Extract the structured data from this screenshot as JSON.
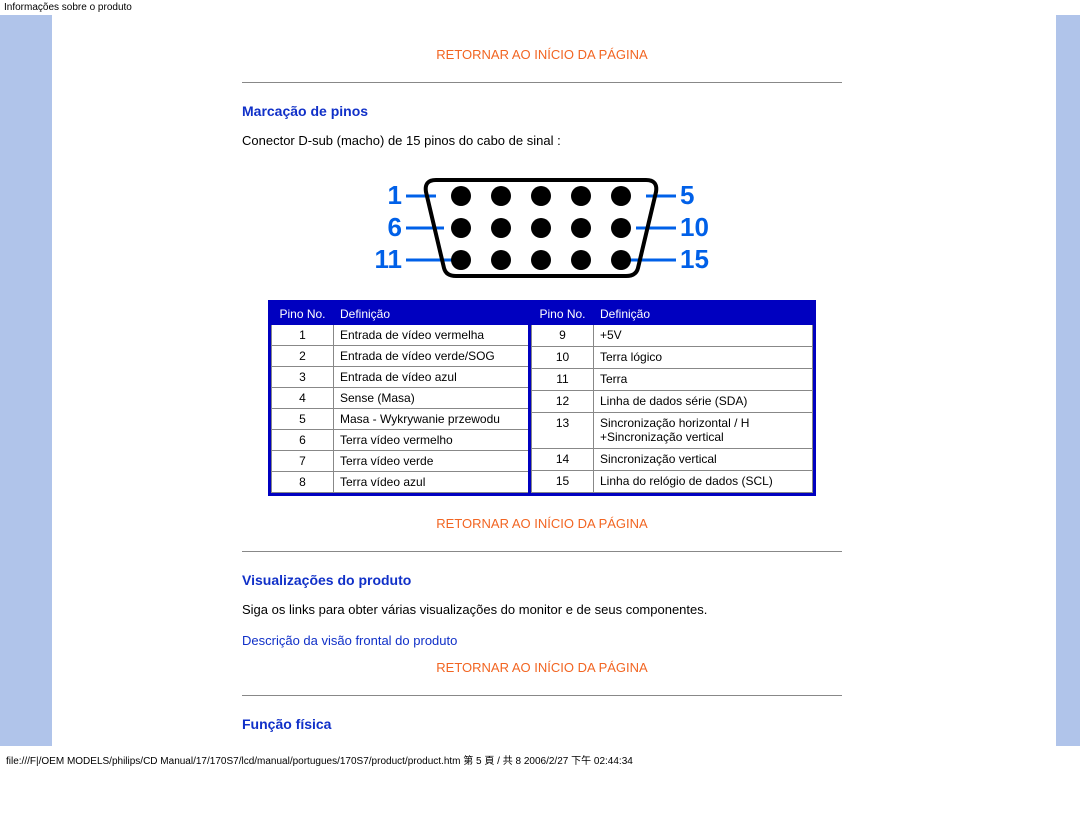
{
  "page_title_bar": "Informações sobre o produto",
  "links": {
    "return_top": "RETORNAR AO INÍCIO DA PÁGINA",
    "front_view": "Descrição da visão frontal do produto"
  },
  "sections": {
    "pin_assignment": {
      "heading": "Marcação de pinos",
      "desc": "Conector D-sub (macho) de 15 pinos do cabo de sinal :"
    },
    "product_views": {
      "heading": "Visualizações do produto",
      "desc": "Siga os links para obter várias visualizações do monitor e de seus componentes."
    },
    "physical_fn": {
      "heading": "Função física"
    }
  },
  "diagram": {
    "row_labels_left": [
      "1",
      "6",
      "11"
    ],
    "row_labels_right": [
      "5",
      "10",
      "15"
    ],
    "label_color": "#0060e8",
    "outline_color": "#000000",
    "pin_color": "#000000"
  },
  "pin_table": {
    "header_bg": "#0000c0",
    "header_text": "#ffffff",
    "border_color": "#0000c0",
    "col_pinno": "Pino No.",
    "col_def": "Definição",
    "left_rows": [
      {
        "n": "1",
        "d": "Entrada de vídeo vermelha"
      },
      {
        "n": "2",
        "d": "Entrada de vídeo verde/SOG"
      },
      {
        "n": "3",
        "d": "Entrada de vídeo azul"
      },
      {
        "n": "4",
        "d": "Sense (Masa)"
      },
      {
        "n": "5",
        "d": "Masa - Wykrywanie przewodu"
      },
      {
        "n": "6",
        "d": "Terra vídeo vermelho"
      },
      {
        "n": "7",
        "d": "Terra vídeo verde"
      },
      {
        "n": "8",
        "d": "Terra vídeo azul"
      }
    ],
    "right_rows": [
      {
        "n": "9",
        "d": "+5V"
      },
      {
        "n": "10",
        "d": "Terra lógico"
      },
      {
        "n": "11",
        "d": "Terra"
      },
      {
        "n": "12",
        "d": "Linha de dados série (SDA)"
      },
      {
        "n": "13",
        "d": "Sincronização horizontal / H +Sincronização vertical"
      },
      {
        "n": "14",
        "d": "Sincronização vertical"
      },
      {
        "n": "15",
        "d": "Linha do relógio de dados (SCL)"
      }
    ]
  },
  "footer": "file:///F|/OEM MODELS/philips/CD Manual/17/170S7/lcd/manual/portugues/170S7/product/product.htm 第 5 頁 / 共 8 2006/2/27 下午 02:44:34"
}
